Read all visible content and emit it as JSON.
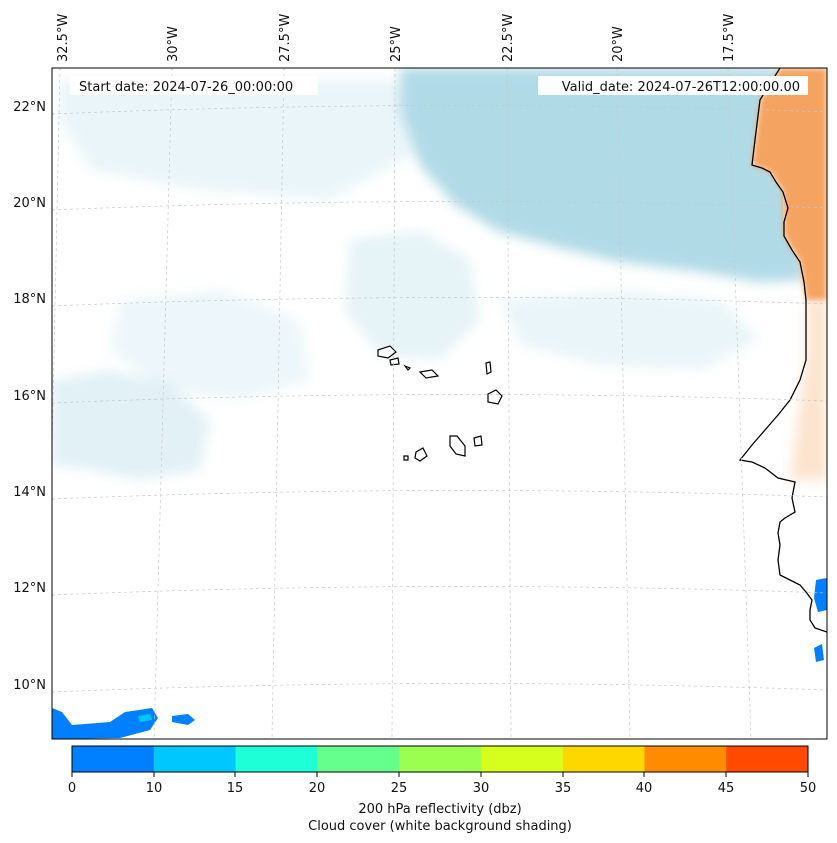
{
  "map": {
    "start_date": "Start date: 2024-07-26_00:00:00",
    "valid_date": "Valid_date: 2024-07-26T12:00:00.00",
    "lon_labels": [
      "32.5°W",
      "30°W",
      "27.5°W",
      "25°W",
      "22.5°W",
      "20°W",
      "17.5°W"
    ],
    "lat_labels": [
      "22°N",
      "20°N",
      "18°N",
      "16°N",
      "14°N",
      "12°N",
      "10°N"
    ],
    "grid": true,
    "colors": {
      "cloud": "#add8e6",
      "land_high": "#f4a460",
      "coast": "#000000",
      "grid": "#c8c8c8"
    }
  },
  "colorbar": {
    "ticks": [
      "0",
      "10",
      "15",
      "20",
      "25",
      "30",
      "35",
      "40",
      "45",
      "50"
    ],
    "colors": [
      "#0080ff",
      "#00c8ff",
      "#1effd8",
      "#64ff8c",
      "#9bff50",
      "#d7ff1e",
      "#ffd700",
      "#ff8c00",
      "#ff4a00"
    ],
    "label_line1": "200 hPa reflectivity (dbz)",
    "label_line2": "Cloud cover (white background shading)"
  }
}
